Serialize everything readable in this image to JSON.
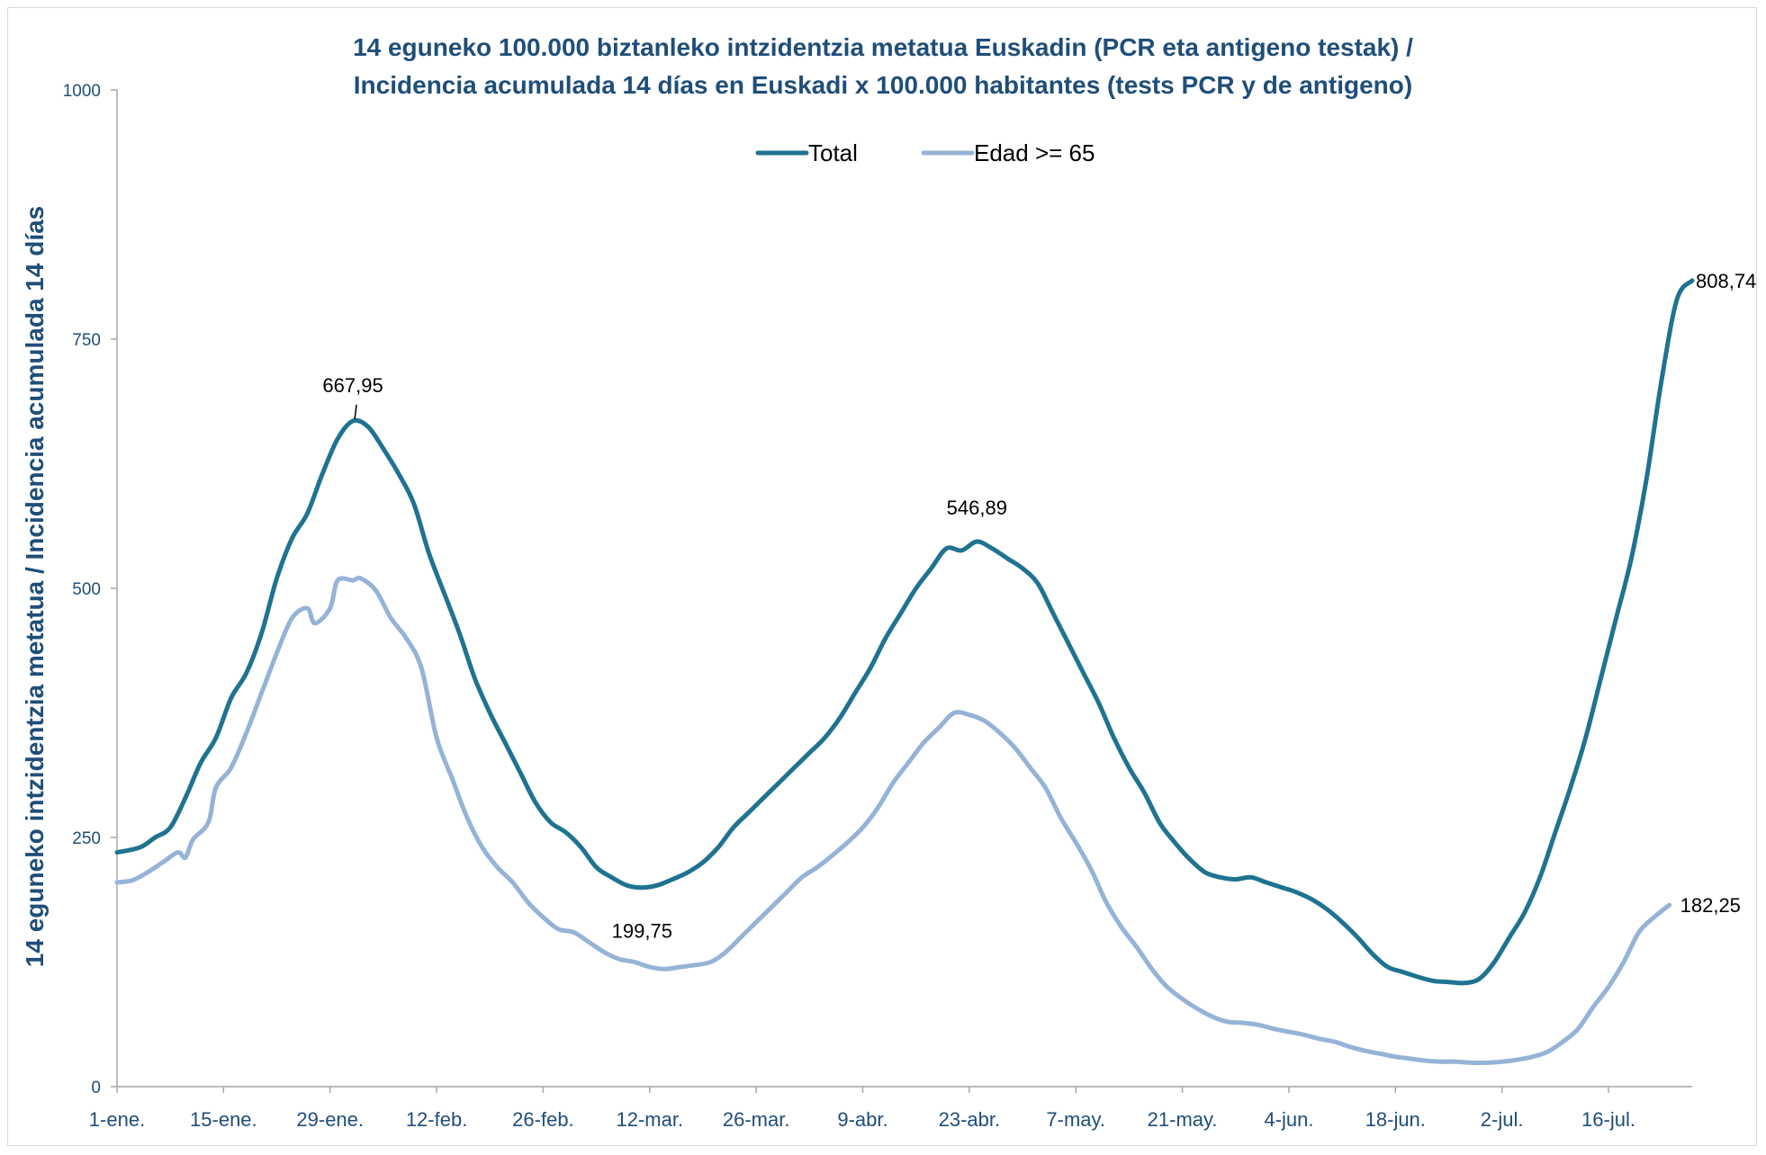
{
  "chart_data": {
    "type": "line",
    "title_line1": "14 eguneko 100.000 biztanleko intzidentzia metatua Euskadin (PCR eta antigeno testak) /",
    "title_line2": "Incidencia acumulada  14 días en Euskadi x 100.000 habitantes (tests PCR y de antigeno)",
    "ylabel": "14 eguneko intzidentzia metatua / Incidencia acumulada  14 días",
    "ylim": [
      0,
      1000
    ],
    "yticks": [
      "0",
      "250",
      "500",
      "750",
      "1000"
    ],
    "xtick_labels": [
      "1-ene.",
      "15-ene.",
      "29-ene.",
      "12-feb.",
      "26-feb.",
      "12-mar.",
      "26-mar.",
      "9-abr.",
      "23-abr.",
      "7-may.",
      "21-may.",
      "4-jun.",
      "18-jun.",
      "2-jul.",
      "16-jul."
    ],
    "x_day_start": 0,
    "x_day_end": 207,
    "legend_position": "top-center",
    "grid": false,
    "series": [
      {
        "name": "Total",
        "color": "#1f7391",
        "points": [
          [
            0,
            235
          ],
          [
            3,
            240
          ],
          [
            5,
            250
          ],
          [
            7,
            260
          ],
          [
            9,
            290
          ],
          [
            11,
            325
          ],
          [
            13,
            350
          ],
          [
            15,
            390
          ],
          [
            17,
            415
          ],
          [
            19,
            455
          ],
          [
            21,
            510
          ],
          [
            23,
            550
          ],
          [
            25,
            575
          ],
          [
            27,
            615
          ],
          [
            29,
            650
          ],
          [
            31,
            668
          ],
          [
            33,
            662
          ],
          [
            35,
            640
          ],
          [
            37,
            615
          ],
          [
            39,
            585
          ],
          [
            41,
            535
          ],
          [
            43,
            495
          ],
          [
            45,
            455
          ],
          [
            47,
            410
          ],
          [
            49,
            375
          ],
          [
            51,
            345
          ],
          [
            53,
            315
          ],
          [
            55,
            285
          ],
          [
            57,
            265
          ],
          [
            59,
            255
          ],
          [
            61,
            240
          ],
          [
            63,
            220
          ],
          [
            65,
            210
          ],
          [
            67,
            202
          ],
          [
            69,
            199.75
          ],
          [
            71,
            202
          ],
          [
            73,
            208
          ],
          [
            75,
            215
          ],
          [
            77,
            225
          ],
          [
            79,
            240
          ],
          [
            81,
            260
          ],
          [
            83,
            275
          ],
          [
            85,
            290
          ],
          [
            87,
            305
          ],
          [
            89,
            320
          ],
          [
            91,
            335
          ],
          [
            93,
            350
          ],
          [
            95,
            370
          ],
          [
            97,
            395
          ],
          [
            99,
            420
          ],
          [
            101,
            450
          ],
          [
            103,
            475
          ],
          [
            105,
            500
          ],
          [
            107,
            520
          ],
          [
            109,
            540
          ],
          [
            111,
            538
          ],
          [
            113,
            546.89
          ],
          [
            115,
            540
          ],
          [
            117,
            530
          ],
          [
            119,
            520
          ],
          [
            121,
            505
          ],
          [
            123,
            475
          ],
          [
            125,
            445
          ],
          [
            127,
            415
          ],
          [
            129,
            385
          ],
          [
            131,
            350
          ],
          [
            133,
            320
          ],
          [
            135,
            295
          ],
          [
            137,
            265
          ],
          [
            139,
            245
          ],
          [
            141,
            228
          ],
          [
            143,
            215
          ],
          [
            145,
            210
          ],
          [
            147,
            208
          ],
          [
            149,
            210
          ],
          [
            151,
            205
          ],
          [
            153,
            200
          ],
          [
            155,
            195
          ],
          [
            157,
            188
          ],
          [
            159,
            178
          ],
          [
            161,
            165
          ],
          [
            163,
            150
          ],
          [
            165,
            133
          ],
          [
            167,
            120
          ],
          [
            169,
            115
          ],
          [
            171,
            110
          ],
          [
            173,
            106
          ],
          [
            175,
            105
          ],
          [
            177,
            104
          ],
          [
            179,
            108
          ],
          [
            181,
            125
          ],
          [
            183,
            150
          ],
          [
            185,
            175
          ],
          [
            187,
            210
          ],
          [
            189,
            255
          ],
          [
            191,
            300
          ],
          [
            193,
            350
          ],
          [
            195,
            410
          ],
          [
            197,
            470
          ],
          [
            199,
            530
          ],
          [
            201,
            610
          ],
          [
            203,
            710
          ],
          [
            205,
            790
          ],
          [
            207,
            808.74
          ]
        ]
      },
      {
        "name": "Edad >= 65",
        "color": "#95b3d7",
        "points": [
          [
            0,
            205
          ],
          [
            2,
            207
          ],
          [
            4,
            215
          ],
          [
            6,
            225
          ],
          [
            8,
            235
          ],
          [
            9,
            230
          ],
          [
            10,
            248
          ],
          [
            12,
            265
          ],
          [
            13,
            300
          ],
          [
            15,
            320
          ],
          [
            17,
            355
          ],
          [
            19,
            395
          ],
          [
            21,
            435
          ],
          [
            23,
            470
          ],
          [
            25,
            480
          ],
          [
            26,
            465
          ],
          [
            28,
            480
          ],
          [
            29,
            508
          ],
          [
            31,
            508
          ],
          [
            32,
            510
          ],
          [
            34,
            498
          ],
          [
            36,
            470
          ],
          [
            38,
            450
          ],
          [
            40,
            420
          ],
          [
            42,
            350
          ],
          [
            44,
            310
          ],
          [
            46,
            270
          ],
          [
            48,
            240
          ],
          [
            50,
            220
          ],
          [
            52,
            205
          ],
          [
            54,
            185
          ],
          [
            56,
            170
          ],
          [
            58,
            158
          ],
          [
            60,
            155
          ],
          [
            62,
            145
          ],
          [
            64,
            135
          ],
          [
            66,
            128
          ],
          [
            68,
            125
          ],
          [
            70,
            120
          ],
          [
            72,
            118
          ],
          [
            74,
            120
          ],
          [
            76,
            122
          ],
          [
            78,
            125
          ],
          [
            80,
            135
          ],
          [
            82,
            150
          ],
          [
            84,
            165
          ],
          [
            86,
            180
          ],
          [
            88,
            195
          ],
          [
            90,
            210
          ],
          [
            92,
            220
          ],
          [
            94,
            232
          ],
          [
            96,
            245
          ],
          [
            98,
            260
          ],
          [
            100,
            280
          ],
          [
            102,
            305
          ],
          [
            104,
            325
          ],
          [
            106,
            345
          ],
          [
            108,
            360
          ],
          [
            110,
            375
          ],
          [
            112,
            373
          ],
          [
            114,
            367
          ],
          [
            116,
            355
          ],
          [
            118,
            340
          ],
          [
            120,
            320
          ],
          [
            122,
            300
          ],
          [
            124,
            270
          ],
          [
            126,
            245
          ],
          [
            128,
            218
          ],
          [
            130,
            185
          ],
          [
            132,
            160
          ],
          [
            134,
            140
          ],
          [
            136,
            118
          ],
          [
            138,
            100
          ],
          [
            140,
            88
          ],
          [
            142,
            78
          ],
          [
            144,
            70
          ],
          [
            146,
            65
          ],
          [
            148,
            64
          ],
          [
            150,
            62
          ],
          [
            152,
            58
          ],
          [
            154,
            55
          ],
          [
            156,
            52
          ],
          [
            158,
            48
          ],
          [
            160,
            45
          ],
          [
            162,
            40
          ],
          [
            164,
            36
          ],
          [
            166,
            33
          ],
          [
            168,
            30
          ],
          [
            170,
            28
          ],
          [
            172,
            26
          ],
          [
            174,
            25
          ],
          [
            176,
            25
          ],
          [
            178,
            24
          ],
          [
            180,
            24
          ],
          [
            182,
            25
          ],
          [
            184,
            27
          ],
          [
            186,
            30
          ],
          [
            188,
            35
          ],
          [
            190,
            45
          ],
          [
            192,
            58
          ],
          [
            194,
            80
          ],
          [
            196,
            100
          ],
          [
            198,
            125
          ],
          [
            200,
            155
          ],
          [
            202,
            170
          ],
          [
            204,
            182.25
          ]
        ]
      }
    ],
    "annotations": [
      {
        "text": "667,95",
        "x": 31,
        "y": 667.95
      },
      {
        "text": "199,75",
        "x": 69,
        "y": 199.75
      },
      {
        "text": "546,89",
        "x": 113,
        "y": 546.89
      },
      {
        "text": "808,74",
        "x": 207,
        "y": 808.74
      },
      {
        "text": "182,25",
        "x": 204,
        "y": 182.25
      }
    ]
  }
}
